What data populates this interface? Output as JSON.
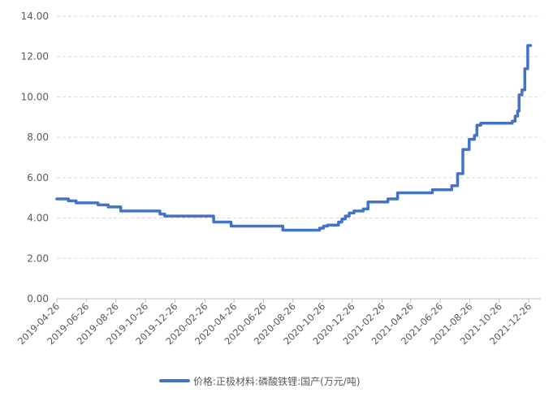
{
  "chart_data": {
    "type": "line",
    "title": "",
    "xlabel": "",
    "ylabel": "",
    "x_range": [
      "2019-04-26",
      "2022-01-20"
    ],
    "ylim": [
      0,
      14
    ],
    "y_ticks": [
      "0.00",
      "2.00",
      "4.00",
      "6.00",
      "8.00",
      "10.00",
      "12.00",
      "14.00"
    ],
    "x_ticks": [
      "2019-04-26",
      "2019-06-26",
      "2019-08-26",
      "2019-10-26",
      "2019-12-26",
      "2020-02-26",
      "2020-04-26",
      "2020-06-26",
      "2020-08-26",
      "2020-10-26",
      "2020-12-26",
      "2021-02-26",
      "2021-04-26",
      "2021-06-26",
      "2021-08-26",
      "2021-10-26",
      "2021-12-26"
    ],
    "grid": true,
    "legend_position": "bottom-center",
    "series": [
      {
        "name": "价格:正极材料:磷酸铁锂:国产(万元/吨)",
        "color": "#4472c4",
        "step": true,
        "points": [
          [
            "2019-04-26",
            4.95
          ],
          [
            "2019-05-20",
            4.85
          ],
          [
            "2019-06-05",
            4.75
          ],
          [
            "2019-07-20",
            4.65
          ],
          [
            "2019-08-10",
            4.55
          ],
          [
            "2019-09-05",
            4.35
          ],
          [
            "2019-11-25",
            4.2
          ],
          [
            "2019-12-05",
            4.1
          ],
          [
            "2020-03-15",
            3.8
          ],
          [
            "2020-04-20",
            3.6
          ],
          [
            "2020-08-05",
            3.4
          ],
          [
            "2020-10-20",
            3.5
          ],
          [
            "2020-10-28",
            3.6
          ],
          [
            "2020-11-05",
            3.65
          ],
          [
            "2020-11-28",
            3.8
          ],
          [
            "2020-12-05",
            3.95
          ],
          [
            "2020-12-12",
            4.1
          ],
          [
            "2020-12-20",
            4.25
          ],
          [
            "2020-12-30",
            4.35
          ],
          [
            "2021-01-18",
            4.45
          ],
          [
            "2021-01-28",
            4.8
          ],
          [
            "2021-03-10",
            4.95
          ],
          [
            "2021-03-30",
            5.25
          ],
          [
            "2021-06-10",
            5.4
          ],
          [
            "2021-07-20",
            5.6
          ],
          [
            "2021-08-01",
            6.2
          ],
          [
            "2021-08-12",
            7.4
          ],
          [
            "2021-08-25",
            7.9
          ],
          [
            "2021-09-05",
            8.1
          ],
          [
            "2021-09-10",
            8.6
          ],
          [
            "2021-09-18",
            8.7
          ],
          [
            "2021-11-22",
            8.8
          ],
          [
            "2021-11-28",
            9.05
          ],
          [
            "2021-12-03",
            9.3
          ],
          [
            "2021-12-06",
            10.1
          ],
          [
            "2021-12-12",
            10.35
          ],
          [
            "2021-12-18",
            11.4
          ],
          [
            "2021-12-24",
            12.55
          ],
          [
            "2021-12-30",
            12.55
          ]
        ]
      }
    ]
  }
}
